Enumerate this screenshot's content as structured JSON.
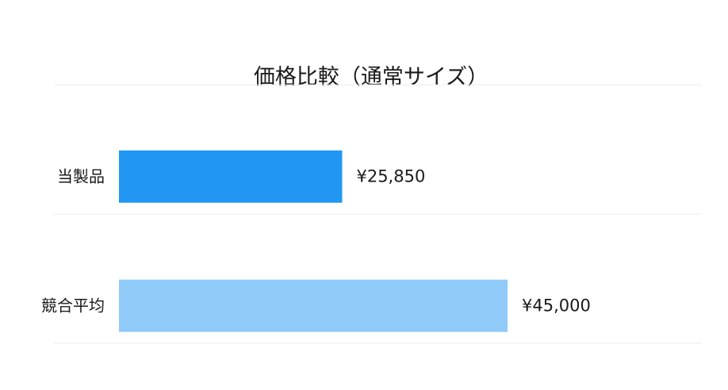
{
  "chart_data": {
    "type": "bar",
    "orientation": "horizontal",
    "title": "価格比較（通常サイズ）",
    "categories": [
      "当製品",
      "競合平均"
    ],
    "values": [
      25850,
      45000
    ],
    "value_labels": [
      "¥25,850",
      "¥45,000"
    ],
    "colors": [
      "#2196f3",
      "#90caf9"
    ],
    "xlim": [
      0,
      67500
    ],
    "grid": true,
    "legend": "none",
    "xlabel": "",
    "ylabel": ""
  }
}
